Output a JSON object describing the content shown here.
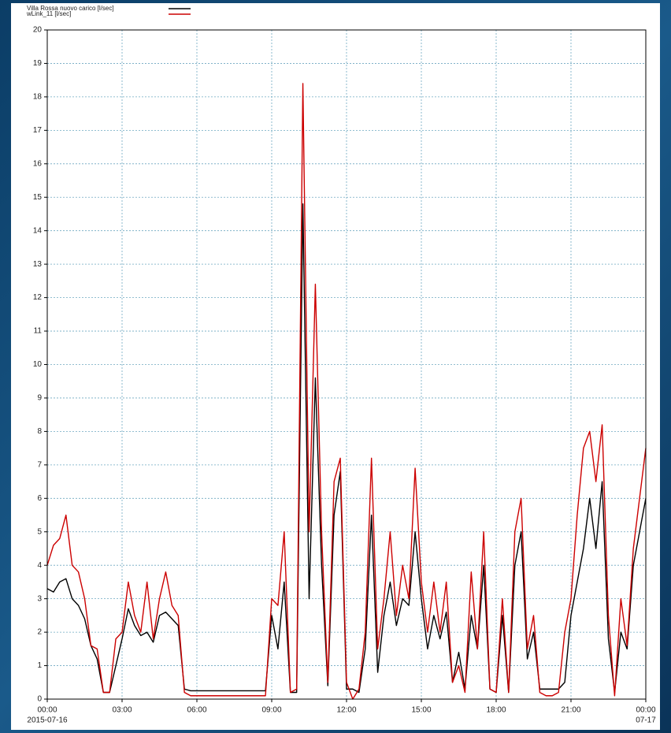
{
  "chart_data": {
    "type": "line",
    "legend_position": "top-left",
    "grid": true,
    "x": [
      0,
      0.25,
      0.5,
      0.75,
      1,
      1.25,
      1.5,
      1.75,
      2,
      2.25,
      2.5,
      2.75,
      3,
      3.25,
      3.5,
      3.75,
      4,
      4.25,
      4.5,
      4.75,
      5,
      5.25,
      5.5,
      5.75,
      6,
      6.25,
      6.5,
      6.75,
      7,
      7.25,
      7.5,
      7.75,
      8,
      8.25,
      8.5,
      8.75,
      9,
      9.25,
      9.5,
      9.75,
      10,
      10.25,
      10.5,
      10.75,
      11,
      11.25,
      11.5,
      11.75,
      12,
      12.25,
      12.5,
      12.75,
      13,
      13.25,
      13.5,
      13.75,
      14,
      14.25,
      14.5,
      14.75,
      15,
      15.25,
      15.5,
      15.75,
      16,
      16.25,
      16.5,
      16.75,
      17,
      17.25,
      17.5,
      17.75,
      18,
      18.25,
      18.5,
      18.75,
      19,
      19.25,
      19.5,
      19.75,
      20,
      20.25,
      20.5,
      20.75,
      21,
      21.25,
      21.5,
      21.75,
      22,
      22.25,
      22.5,
      22.75,
      23,
      23.25,
      23.5,
      23.75,
      24
    ],
    "xlim": [
      0,
      24
    ],
    "xticks": [
      {
        "value": 0,
        "label": "00:00",
        "date": "2015-07-16"
      },
      {
        "value": 3,
        "label": "03:00"
      },
      {
        "value": 6,
        "label": "06:00"
      },
      {
        "value": 9,
        "label": "09:00"
      },
      {
        "value": 12,
        "label": "12:00"
      },
      {
        "value": 15,
        "label": "15:00"
      },
      {
        "value": 18,
        "label": "18:00"
      },
      {
        "value": 21,
        "label": "21:00"
      },
      {
        "value": 24,
        "label": "00:00",
        "date": "07-17"
      }
    ],
    "ylim": [
      0,
      20
    ],
    "yticks": [
      0,
      1,
      2,
      3,
      4,
      5,
      6,
      7,
      8,
      9,
      10,
      11,
      12,
      13,
      14,
      15,
      16,
      17,
      18,
      19,
      20
    ],
    "series": [
      {
        "name": "Villa Rossa nuovo carico [l/sec]",
        "color": "#000000",
        "values": [
          3.3,
          3.2,
          3.5,
          3.6,
          3.0,
          2.8,
          2.4,
          1.6,
          1.2,
          0.2,
          0.2,
          1.0,
          1.8,
          2.7,
          2.2,
          1.9,
          2.0,
          1.7,
          2.5,
          2.6,
          2.4,
          2.2,
          0.3,
          0.25,
          0.25,
          0.25,
          0.25,
          0.25,
          0.25,
          0.25,
          0.25,
          0.25,
          0.25,
          0.25,
          0.25,
          0.25,
          2.5,
          1.5,
          3.5,
          0.2,
          0.2,
          14.8,
          3.0,
          9.6,
          4.0,
          0.4,
          5.5,
          6.8,
          0.3,
          0.3,
          0.2,
          1.5,
          5.5,
          0.8,
          2.5,
          3.5,
          2.2,
          3.0,
          2.8,
          5.0,
          3.0,
          1.5,
          2.5,
          1.8,
          2.6,
          0.5,
          1.4,
          0.3,
          2.5,
          1.5,
          4.0,
          0.3,
          0.2,
          2.5,
          0.2,
          4.0,
          5.0,
          1.2,
          2.0,
          0.3,
          0.3,
          0.3,
          0.3,
          0.5,
          2.5,
          3.5,
          4.5,
          6.0,
          4.5,
          6.5,
          1.8,
          0.2,
          2.0,
          1.5,
          4.0,
          5.0,
          6.0
        ]
      },
      {
        "name": "wLink_11 [l/sec]",
        "color": "#cc0000",
        "values": [
          4.0,
          4.6,
          4.8,
          5.5,
          4.0,
          3.8,
          3.0,
          1.6,
          1.5,
          0.2,
          0.2,
          1.8,
          2.0,
          3.5,
          2.5,
          2.0,
          3.5,
          1.8,
          3.0,
          3.8,
          2.8,
          2.5,
          0.2,
          0.1,
          0.1,
          0.1,
          0.1,
          0.1,
          0.1,
          0.1,
          0.1,
          0.1,
          0.1,
          0.1,
          0.1,
          0.1,
          3.0,
          2.8,
          5.0,
          0.2,
          0.3,
          18.4,
          5.0,
          12.4,
          5.0,
          0.5,
          6.5,
          7.2,
          0.5,
          0,
          0.3,
          2.0,
          7.2,
          1.5,
          3.0,
          5.0,
          2.5,
          4.0,
          3.0,
          6.9,
          3.5,
          2.0,
          3.5,
          2.0,
          3.5,
          0.5,
          1.0,
          0.2,
          3.8,
          1.5,
          5.0,
          0.3,
          0.2,
          3.0,
          0.2,
          5.0,
          6.0,
          1.5,
          2.5,
          0.2,
          0.1,
          0.1,
          0.2,
          2.0,
          3.0,
          5.5,
          7.5,
          8.0,
          6.5,
          8.2,
          2.5,
          0.1,
          3.0,
          1.6,
          4.5,
          6.0,
          7.5
        ]
      }
    ]
  }
}
